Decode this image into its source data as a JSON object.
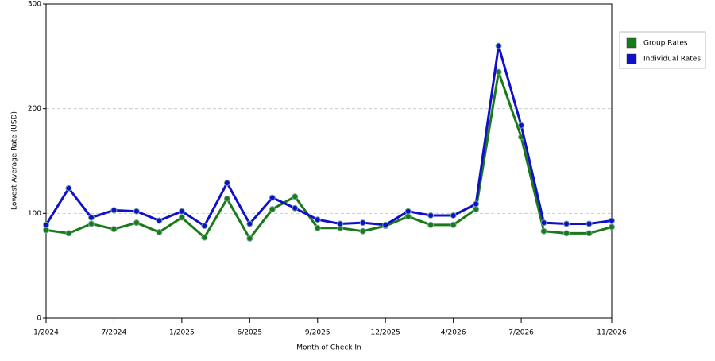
{
  "chart_data": {
    "type": "line",
    "x_label": "Month of Check In",
    "y_label": "Lowest Average Rate (USD)",
    "categories": [
      "1/2024",
      null,
      null,
      "7/2024",
      null,
      null,
      "1/2025",
      null,
      null,
      "6/2025",
      null,
      null,
      "9/2025",
      null,
      null,
      "12/2025",
      null,
      null,
      "4/2026",
      null,
      null,
      "7/2026",
      null,
      null,
      null,
      "11/2026"
    ],
    "series": [
      {
        "name": "Group Rates",
        "color": "#1a7a1a",
        "values": [
          84,
          81,
          90,
          85,
          91,
          82,
          96,
          77,
          114,
          76,
          104,
          116,
          86,
          86,
          83,
          88,
          97,
          89,
          89,
          104,
          235,
          173,
          83,
          81,
          81,
          87
        ]
      },
      {
        "name": "Individual Rates",
        "color": "#1010cc",
        "values": [
          89,
          124,
          96,
          103,
          102,
          93,
          102,
          88,
          129,
          90,
          115,
          105,
          94,
          90,
          91,
          89,
          102,
          98,
          98,
          109,
          260,
          184,
          91,
          90,
          90,
          93
        ]
      }
    ],
    "ylim": [
      0,
      300
    ],
    "yticks": [
      0,
      100,
      200,
      300
    ],
    "grid": true,
    "legend": "right"
  }
}
